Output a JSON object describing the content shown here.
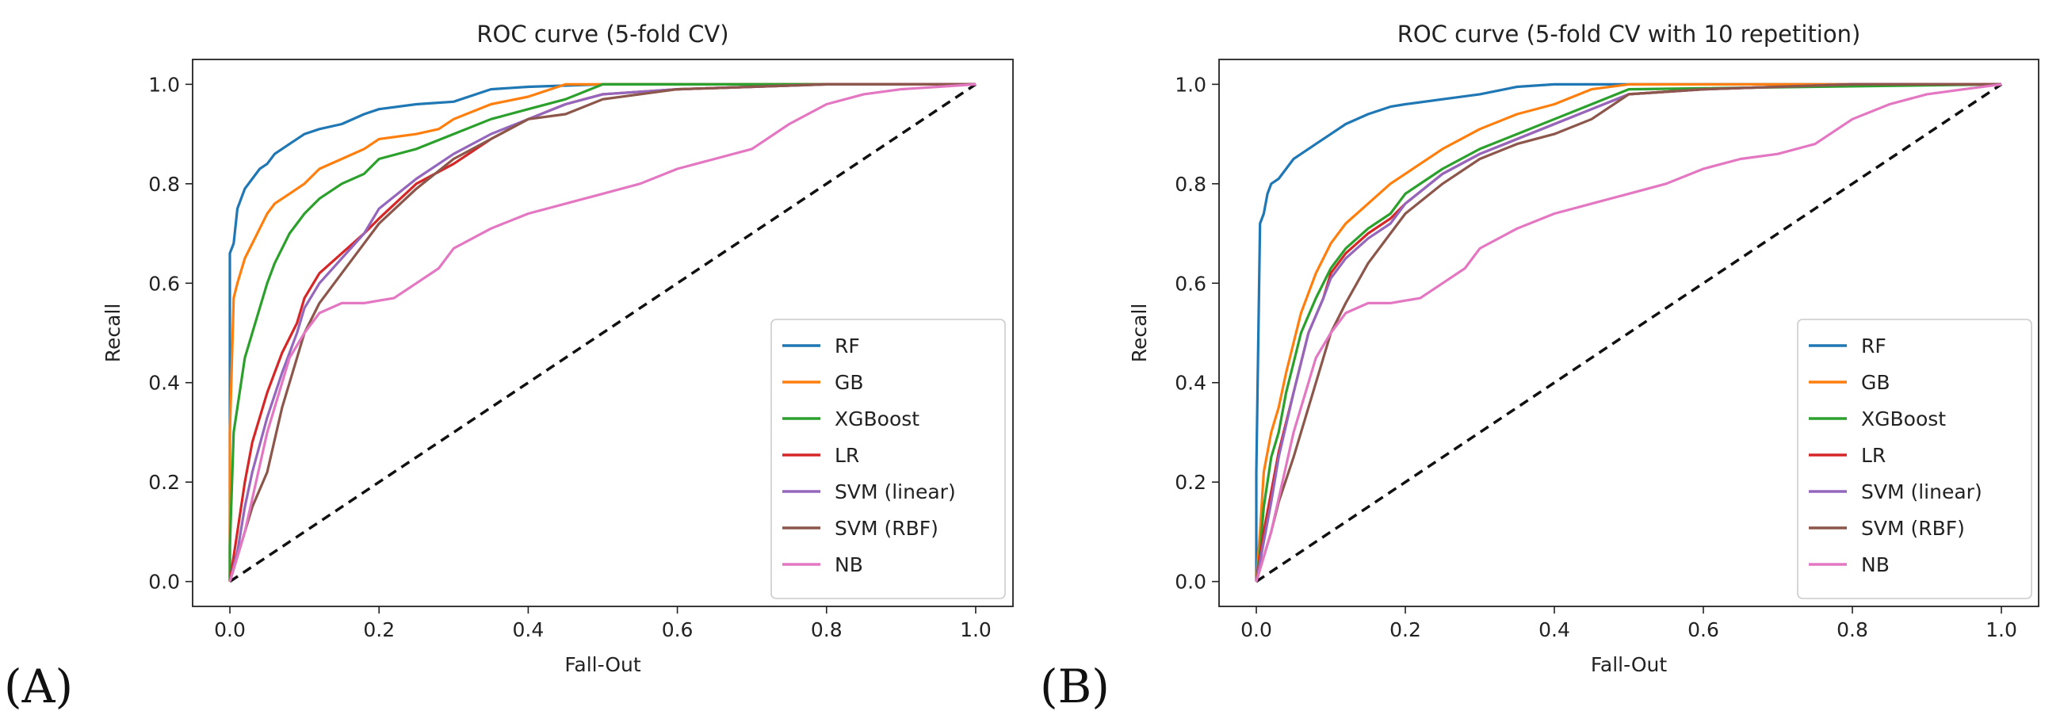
{
  "chart_data": [
    {
      "panel": "(A)",
      "type": "line",
      "title": "ROC curve (5-fold CV)",
      "xlabel": "Fall-Out",
      "ylabel": "Recall",
      "xlim": [
        -0.05,
        1.05
      ],
      "ylim": [
        -0.05,
        1.05
      ],
      "xticks": [
        "0.0",
        "0.2",
        "0.4",
        "0.6",
        "0.8",
        "1.0"
      ],
      "yticks": [
        "0.0",
        "0.2",
        "0.4",
        "0.6",
        "0.8",
        "1.0"
      ],
      "legend_position": "lower-right",
      "series": [
        {
          "name": "RF",
          "color": "#1f77b4",
          "x": [
            0,
            0,
            0.005,
            0.01,
            0.015,
            0.02,
            0.03,
            0.04,
            0.05,
            0.06,
            0.08,
            0.1,
            0.12,
            0.15,
            0.18,
            0.2,
            0.25,
            0.3,
            0.35,
            0.4,
            0.5,
            1.0
          ],
          "y": [
            0,
            0.66,
            0.68,
            0.75,
            0.77,
            0.79,
            0.81,
            0.83,
            0.84,
            0.86,
            0.88,
            0.9,
            0.91,
            0.92,
            0.94,
            0.95,
            0.96,
            0.965,
            0.99,
            0.995,
            1.0,
            1.0
          ]
        },
        {
          "name": "GB",
          "color": "#ff7f0e",
          "x": [
            0,
            0,
            0.005,
            0.01,
            0.02,
            0.03,
            0.04,
            0.05,
            0.06,
            0.08,
            0.1,
            0.12,
            0.15,
            0.18,
            0.2,
            0.25,
            0.28,
            0.3,
            0.35,
            0.4,
            0.45,
            0.5,
            1.0
          ],
          "y": [
            0,
            0.3,
            0.57,
            0.6,
            0.65,
            0.68,
            0.71,
            0.74,
            0.76,
            0.78,
            0.8,
            0.83,
            0.85,
            0.87,
            0.89,
            0.9,
            0.91,
            0.93,
            0.96,
            0.975,
            1.0,
            1.0,
            1.0
          ]
        },
        {
          "name": "XGBoost",
          "color": "#2ca02c",
          "x": [
            0,
            0,
            0.005,
            0.01,
            0.02,
            0.03,
            0.04,
            0.05,
            0.06,
            0.08,
            0.1,
            0.12,
            0.15,
            0.18,
            0.2,
            0.25,
            0.3,
            0.35,
            0.4,
            0.45,
            0.5,
            1.0
          ],
          "y": [
            0,
            0.07,
            0.3,
            0.35,
            0.45,
            0.5,
            0.55,
            0.6,
            0.64,
            0.7,
            0.74,
            0.77,
            0.8,
            0.82,
            0.85,
            0.87,
            0.9,
            0.93,
            0.95,
            0.97,
            1.0,
            1.0
          ]
        },
        {
          "name": "LR",
          "color": "#d62728",
          "x": [
            0,
            0.01,
            0.02,
            0.03,
            0.05,
            0.07,
            0.09,
            0.1,
            0.12,
            0.15,
            0.18,
            0.2,
            0.25,
            0.3,
            0.35,
            0.4,
            0.45,
            0.5,
            0.6,
            0.8,
            1.0
          ],
          "y": [
            0,
            0.1,
            0.2,
            0.28,
            0.38,
            0.46,
            0.52,
            0.57,
            0.62,
            0.66,
            0.7,
            0.73,
            0.8,
            0.84,
            0.89,
            0.93,
            0.96,
            0.98,
            0.99,
            1.0,
            1.0
          ]
        },
        {
          "name": "SVM (linear)",
          "color": "#9467bd",
          "x": [
            0,
            0.01,
            0.02,
            0.03,
            0.05,
            0.07,
            0.09,
            0.1,
            0.12,
            0.15,
            0.18,
            0.2,
            0.25,
            0.3,
            0.35,
            0.4,
            0.45,
            0.5,
            0.6,
            0.8,
            1.0
          ],
          "y": [
            0,
            0.06,
            0.15,
            0.22,
            0.33,
            0.42,
            0.5,
            0.55,
            0.6,
            0.65,
            0.7,
            0.75,
            0.81,
            0.86,
            0.9,
            0.93,
            0.96,
            0.98,
            0.99,
            1.0,
            1.0
          ]
        },
        {
          "name": "SVM (RBF)",
          "color": "#8c564b",
          "x": [
            0,
            0.01,
            0.02,
            0.03,
            0.05,
            0.07,
            0.09,
            0.1,
            0.12,
            0.15,
            0.18,
            0.2,
            0.25,
            0.3,
            0.35,
            0.4,
            0.45,
            0.5,
            0.6,
            0.8,
            1.0
          ],
          "y": [
            0,
            0.05,
            0.1,
            0.15,
            0.22,
            0.35,
            0.45,
            0.5,
            0.56,
            0.62,
            0.68,
            0.72,
            0.79,
            0.85,
            0.89,
            0.93,
            0.94,
            0.97,
            0.99,
            1.0,
            1.0
          ]
        },
        {
          "name": "NB",
          "color": "#e377c2",
          "x": [
            0,
            0.02,
            0.05,
            0.08,
            0.1,
            0.12,
            0.15,
            0.18,
            0.2,
            0.22,
            0.25,
            0.28,
            0.3,
            0.35,
            0.4,
            0.45,
            0.5,
            0.55,
            0.6,
            0.65,
            0.7,
            0.75,
            0.8,
            0.85,
            0.9,
            0.95,
            1.0
          ],
          "y": [
            0,
            0.1,
            0.3,
            0.45,
            0.5,
            0.54,
            0.56,
            0.56,
            0.565,
            0.57,
            0.6,
            0.63,
            0.67,
            0.71,
            0.74,
            0.76,
            0.78,
            0.8,
            0.83,
            0.85,
            0.87,
            0.92,
            0.96,
            0.98,
            0.99,
            0.995,
            1.0
          ]
        }
      ]
    },
    {
      "panel": "(B)",
      "type": "line",
      "title": "ROC curve (5-fold CV with 10 repetition)",
      "xlabel": "Fall-Out",
      "ylabel": "Recall",
      "xlim": [
        -0.05,
        1.05
      ],
      "ylim": [
        -0.05,
        1.05
      ],
      "xticks": [
        "0.0",
        "0.2",
        "0.4",
        "0.6",
        "0.8",
        "1.0"
      ],
      "yticks": [
        "0.0",
        "0.2",
        "0.4",
        "0.6",
        "0.8",
        "1.0"
      ],
      "legend_position": "lower-right",
      "series": [
        {
          "name": "RF",
          "color": "#1f77b4",
          "x": [
            0,
            0,
            0.005,
            0.01,
            0.015,
            0.02,
            0.03,
            0.04,
            0.05,
            0.06,
            0.08,
            0.1,
            0.12,
            0.15,
            0.18,
            0.2,
            0.25,
            0.3,
            0.35,
            0.4,
            0.5,
            1.0
          ],
          "y": [
            0,
            0.22,
            0.72,
            0.74,
            0.78,
            0.8,
            0.81,
            0.83,
            0.85,
            0.86,
            0.88,
            0.9,
            0.92,
            0.94,
            0.955,
            0.96,
            0.97,
            0.98,
            0.995,
            1.0,
            1.0,
            1.0
          ]
        },
        {
          "name": "GB",
          "color": "#ff7f0e",
          "x": [
            0,
            0.005,
            0.01,
            0.02,
            0.03,
            0.04,
            0.05,
            0.06,
            0.08,
            0.1,
            0.12,
            0.15,
            0.18,
            0.2,
            0.25,
            0.3,
            0.35,
            0.4,
            0.45,
            0.5,
            1.0
          ],
          "y": [
            0,
            0.1,
            0.22,
            0.3,
            0.35,
            0.42,
            0.48,
            0.54,
            0.62,
            0.68,
            0.72,
            0.76,
            0.8,
            0.82,
            0.87,
            0.91,
            0.94,
            0.96,
            0.99,
            1.0,
            1.0
          ]
        },
        {
          "name": "XGBoost",
          "color": "#2ca02c",
          "x": [
            0,
            0.005,
            0.01,
            0.02,
            0.03,
            0.04,
            0.05,
            0.06,
            0.08,
            0.1,
            0.12,
            0.15,
            0.18,
            0.2,
            0.25,
            0.3,
            0.35,
            0.4,
            0.45,
            0.5,
            1.0
          ],
          "y": [
            0,
            0.06,
            0.15,
            0.25,
            0.3,
            0.38,
            0.44,
            0.5,
            0.57,
            0.63,
            0.67,
            0.71,
            0.74,
            0.78,
            0.83,
            0.87,
            0.9,
            0.93,
            0.96,
            0.99,
            1.0
          ]
        },
        {
          "name": "LR",
          "color": "#d62728",
          "x": [
            0,
            0.01,
            0.02,
            0.03,
            0.05,
            0.07,
            0.09,
            0.1,
            0.12,
            0.15,
            0.18,
            0.2,
            0.25,
            0.3,
            0.35,
            0.4,
            0.45,
            0.5,
            0.6,
            0.8,
            1.0
          ],
          "y": [
            0,
            0.1,
            0.18,
            0.26,
            0.38,
            0.5,
            0.57,
            0.62,
            0.66,
            0.7,
            0.73,
            0.76,
            0.82,
            0.86,
            0.89,
            0.92,
            0.95,
            0.98,
            0.99,
            1.0,
            1.0
          ]
        },
        {
          "name": "SVM (linear)",
          "color": "#9467bd",
          "x": [
            0,
            0.01,
            0.02,
            0.03,
            0.05,
            0.07,
            0.09,
            0.1,
            0.12,
            0.15,
            0.18,
            0.2,
            0.25,
            0.3,
            0.35,
            0.4,
            0.45,
            0.5,
            0.6,
            0.8,
            1.0
          ],
          "y": [
            0,
            0.08,
            0.16,
            0.25,
            0.38,
            0.5,
            0.57,
            0.61,
            0.65,
            0.69,
            0.72,
            0.76,
            0.82,
            0.86,
            0.89,
            0.92,
            0.95,
            0.98,
            0.99,
            1.0,
            1.0
          ]
        },
        {
          "name": "SVM (RBF)",
          "color": "#8c564b",
          "x": [
            0,
            0.01,
            0.02,
            0.03,
            0.05,
            0.07,
            0.09,
            0.1,
            0.12,
            0.15,
            0.18,
            0.2,
            0.25,
            0.3,
            0.35,
            0.4,
            0.45,
            0.5,
            0.6,
            0.8,
            1.0
          ],
          "y": [
            0,
            0.05,
            0.1,
            0.16,
            0.25,
            0.35,
            0.45,
            0.5,
            0.56,
            0.64,
            0.7,
            0.74,
            0.8,
            0.85,
            0.88,
            0.9,
            0.93,
            0.98,
            0.99,
            1.0,
            1.0
          ]
        },
        {
          "name": "NB",
          "color": "#e377c2",
          "x": [
            0,
            0.02,
            0.05,
            0.08,
            0.1,
            0.12,
            0.15,
            0.18,
            0.2,
            0.22,
            0.25,
            0.28,
            0.3,
            0.35,
            0.4,
            0.45,
            0.5,
            0.55,
            0.6,
            0.65,
            0.7,
            0.75,
            0.8,
            0.85,
            0.9,
            0.95,
            1.0
          ],
          "y": [
            0,
            0.1,
            0.3,
            0.45,
            0.5,
            0.54,
            0.56,
            0.56,
            0.565,
            0.57,
            0.6,
            0.63,
            0.67,
            0.71,
            0.74,
            0.76,
            0.78,
            0.8,
            0.83,
            0.85,
            0.86,
            0.88,
            0.93,
            0.96,
            0.98,
            0.99,
            1.0
          ]
        }
      ]
    }
  ]
}
